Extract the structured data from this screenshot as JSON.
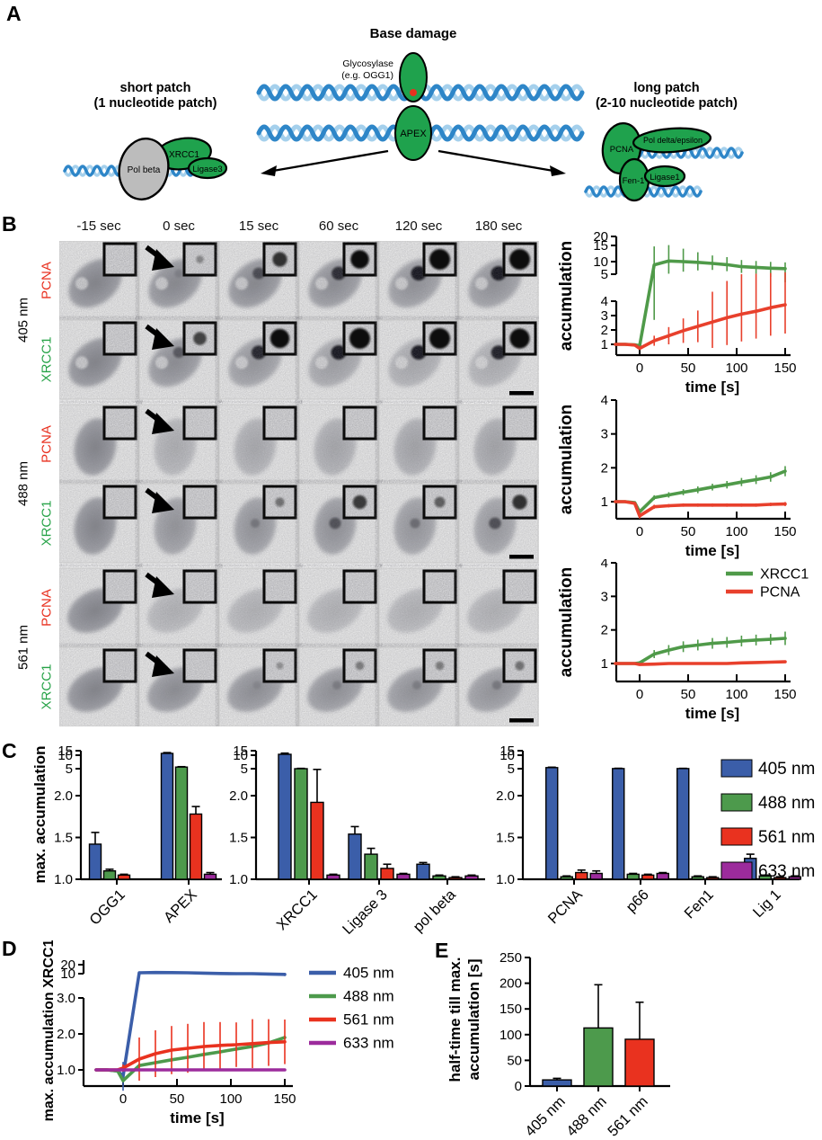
{
  "figure": {
    "panel_labels": {
      "a": "A",
      "b": "B",
      "c": "C",
      "d": "D",
      "e": "E"
    }
  },
  "colors": {
    "nm405": "#3b5ea9",
    "nm488": "#4d9a4c",
    "nm561": "#e9321f",
    "nm633": "#9c2b9c",
    "xrcc1_green": "#27a348",
    "pcna_red": "#e8301f",
    "protein_green": "#1fa24d",
    "protein_gray": "#bcbcbc",
    "dna_dark": "#2e86c8",
    "dna_light": "#a5d0ec",
    "curve_green": "#4f9a49",
    "curve_red": "#e8402c"
  },
  "panel_a": {
    "title": "Base damage",
    "glycosylase_label_line1": "Glycosylase",
    "glycosylase_label_line2": "(e.g. OGG1)",
    "glycosylase_enzyme": "Glycosylase",
    "apex": "APEX",
    "left_heading_line1": "short patch",
    "left_heading_line2": "(1 nucleotide patch)",
    "right_heading_line1": "long patch",
    "right_heading_line2": "(2-10 nucleotide patch)",
    "left_proteins": [
      "Pol beta",
      "XRCC1",
      "Ligase3"
    ],
    "right_proteins": [
      "PCNA",
      "Pol delta/epsilon",
      "Fen-1",
      "Ligase1"
    ]
  },
  "panel_b": {
    "time_headers": [
      "-15 sec",
      "0 sec",
      "15 sec",
      "60 sec",
      "120 sec",
      "180 sec"
    ],
    "groups": [
      {
        "wavelength": "405 nm",
        "rows": [
          {
            "protein": "PCNA",
            "color": "#e8301f",
            "spots": [
              0,
              0.15,
              0.6,
              0.85,
              1,
              1
            ],
            "fade": [
              1,
              0.95,
              0.95,
              0.9,
              0.85,
              0.85
            ]
          },
          {
            "protein": "XRCC1",
            "color": "#27a348",
            "spots": [
              0,
              0.5,
              0.9,
              1,
              1,
              0.95
            ],
            "fade": [
              1,
              0.9,
              0.8,
              0.7,
              0.6,
              0.55
            ]
          }
        ]
      },
      {
        "wavelength": "488 nm",
        "rows": [
          {
            "protein": "PCNA",
            "color": "#e8301f",
            "spots": [
              0,
              0,
              0,
              0,
              0,
              0
            ],
            "fade": [
              1,
              0.55,
              0.6,
              0.62,
              0.65,
              0.65
            ]
          },
          {
            "protein": "XRCC1",
            "color": "#27a348",
            "spots": [
              0,
              0,
              0.25,
              0.55,
              0.35,
              0.6
            ],
            "fade": [
              1,
              0.82,
              0.84,
              0.86,
              0.8,
              0.76
            ]
          }
        ]
      },
      {
        "wavelength": "561 nm",
        "rows": [
          {
            "protein": "PCNA",
            "color": "#e8301f",
            "spots": [
              0,
              0,
              0,
              0,
              0,
              0
            ],
            "fade": [
              1,
              0.5,
              0.5,
              0.5,
              0.5,
              0.5
            ]
          },
          {
            "protein": "XRCC1",
            "color": "#27a348",
            "spots": [
              0,
              0,
              0.1,
              0.2,
              0.2,
              0.25
            ],
            "fade": [
              1,
              0.9,
              0.88,
              0.86,
              0.84,
              0.82
            ]
          }
        ]
      }
    ]
  },
  "wavelength_legend": [
    {
      "label": "405 nm",
      "color": "#3b5ea9"
    },
    {
      "label": "488 nm",
      "color": "#4d9a4c"
    },
    {
      "label": "561 nm",
      "color": "#e9321f"
    },
    {
      "label": "633 nm",
      "color": "#9c2b9c"
    }
  ],
  "chart_data": [
    {
      "id": "b405",
      "type": "line",
      "panel": "B",
      "condition": "405 nm",
      "xlabel": "time [s]",
      "ylabel": "accumulation",
      "x_ticks": [
        0,
        50,
        100,
        150
      ],
      "y_ticks": [
        1,
        2,
        3,
        4
      ],
      "y_ticks_break": [
        5,
        10,
        15,
        20
      ],
      "x": [
        -25,
        -15,
        -5,
        0,
        15,
        30,
        45,
        60,
        75,
        90,
        105,
        120,
        135,
        150
      ],
      "series": [
        {
          "name": "XRCC1",
          "color": "#4f9a49",
          "values": [
            1,
            1,
            0.97,
            0.9,
            8.7,
            10.2,
            10,
            9.7,
            9.3,
            8.8,
            8,
            7.7,
            7.4,
            7.2
          ],
          "errors": [
            0,
            0,
            0,
            0.15,
            6,
            5,
            4,
            3.2,
            2.6,
            2.6,
            2.5,
            2.5,
            2.5,
            2.5
          ]
        },
        {
          "name": "PCNA",
          "color": "#e8402c",
          "values": [
            1,
            1,
            0.95,
            0.72,
            1.25,
            1.6,
            1.95,
            2.25,
            2.55,
            2.85,
            3.1,
            3.3,
            3.55,
            3.75
          ],
          "errors": [
            0,
            0,
            0,
            0.1,
            0.35,
            0.6,
            0.85,
            1.1,
            1.8,
            1.9,
            1.9,
            1.9,
            1.95,
            2
          ]
        }
      ]
    },
    {
      "id": "b488",
      "type": "line",
      "panel": "B",
      "condition": "488 nm",
      "xlabel": "time [s]",
      "ylabel": "accumulation",
      "x_ticks": [
        0,
        50,
        100,
        150
      ],
      "y_ticks": [
        1,
        2,
        3,
        4
      ],
      "x": [
        -25,
        -15,
        -5,
        0,
        15,
        30,
        45,
        60,
        75,
        90,
        105,
        120,
        135,
        150
      ],
      "series": [
        {
          "name": "XRCC1",
          "color": "#4f9a49",
          "values": [
            1,
            1,
            0.97,
            0.7,
            1.12,
            1.2,
            1.28,
            1.35,
            1.43,
            1.5,
            1.58,
            1.65,
            1.73,
            1.9
          ],
          "errors": [
            0,
            0,
            0,
            0.08,
            0.07,
            0.08,
            0.09,
            0.1,
            0.1,
            0.11,
            0.12,
            0.13,
            0.14,
            0.15
          ]
        },
        {
          "name": "PCNA",
          "color": "#e8402c",
          "values": [
            1,
            1,
            0.95,
            0.58,
            0.85,
            0.88,
            0.9,
            0.9,
            0.9,
            0.9,
            0.9,
            0.9,
            0.92,
            0.93
          ],
          "errors": [
            0,
            0,
            0,
            0.08,
            0.06,
            0.05,
            0.05,
            0.05,
            0.05,
            0.05,
            0.05,
            0.05,
            0.05,
            0.06
          ]
        }
      ]
    },
    {
      "id": "b561",
      "type": "line",
      "panel": "B",
      "condition": "561 nm",
      "xlabel": "time [s]",
      "ylabel": "accumulation",
      "legend": true,
      "x_ticks": [
        0,
        50,
        100,
        150
      ],
      "y_ticks": [
        1,
        2,
        3,
        4
      ],
      "x": [
        -25,
        -15,
        -5,
        0,
        15,
        30,
        45,
        60,
        75,
        90,
        105,
        120,
        135,
        150
      ],
      "series": [
        {
          "name": "XRCC1",
          "color": "#4f9a49",
          "values": [
            1,
            1,
            1,
            1.02,
            1.28,
            1.4,
            1.5,
            1.55,
            1.6,
            1.63,
            1.67,
            1.7,
            1.72,
            1.75
          ],
          "errors": [
            0,
            0,
            0,
            0.05,
            0.12,
            0.15,
            0.16,
            0.16,
            0.16,
            0.16,
            0.16,
            0.16,
            0.16,
            0.2
          ]
        },
        {
          "name": "PCNA",
          "color": "#e8402c",
          "values": [
            1,
            1,
            1,
            0.97,
            0.98,
            1,
            1,
            1,
            1,
            1,
            1.02,
            1.03,
            1.04,
            1.05
          ],
          "errors": [
            0,
            0,
            0,
            0,
            0,
            0,
            0,
            0,
            0,
            0,
            0,
            0,
            0,
            0
          ]
        }
      ]
    },
    {
      "id": "c_initiation",
      "type": "bar",
      "panel": "C",
      "ylabel": "max. accumulation",
      "y_ticks": [
        "1.0",
        "1.5",
        "2.0"
      ],
      "y_ticks_break": [
        "5",
        "10",
        "15"
      ],
      "categories": [
        "OGG1",
        "APEX"
      ],
      "series": [
        {
          "name": "405 nm",
          "color": "#3b5ea9",
          "values": [
            1.42,
            12
          ],
          "errors": [
            0.14,
            0.9
          ]
        },
        {
          "name": "488 nm",
          "color": "#4d9a4c",
          "values": [
            1.1,
            5.6
          ],
          "errors": [
            0.02,
            0.15
          ]
        },
        {
          "name": "561 nm",
          "color": "#e9321f",
          "values": [
            1.05,
            1.78
          ],
          "errors": [
            0.01,
            0.09
          ]
        },
        {
          "name": "633 nm",
          "color": "#9c2b9c",
          "values": [
            null,
            1.06
          ],
          "errors": [
            null,
            0.02
          ]
        }
      ]
    },
    {
      "id": "c_shortpatch",
      "type": "bar",
      "panel": "C",
      "y_ticks": [
        "1.0",
        "1.5",
        "2.0"
      ],
      "y_ticks_break": [
        "5",
        "10",
        "15"
      ],
      "categories": [
        "XRCC1",
        "Ligase 3",
        "pol beta"
      ],
      "series": [
        {
          "name": "405 nm",
          "color": "#3b5ea9",
          "values": [
            11,
            1.54,
            1.18
          ],
          "errors": [
            1.3,
            0.09,
            0.02
          ]
        },
        {
          "name": "488 nm",
          "color": "#4d9a4c",
          "values": [
            5,
            1.3,
            1.04
          ],
          "errors": [
            0.12,
            0.07,
            0.01
          ]
        },
        {
          "name": "561 nm",
          "color": "#e9321f",
          "values": [
            1.92,
            1.13,
            1.02
          ],
          "errors": [
            3,
            0.05,
            0.01
          ]
        },
        {
          "name": "633 nm",
          "color": "#9c2b9c",
          "values": [
            1.05,
            1.06,
            1.04
          ],
          "errors": [
            0.01,
            0.01,
            0.01
          ]
        }
      ]
    },
    {
      "id": "c_longpatch",
      "type": "bar",
      "panel": "C",
      "legend": true,
      "y_ticks": [
        "1.0",
        "1.5",
        "2.0"
      ],
      "y_ticks_break": [
        "5",
        "10",
        "15"
      ],
      "categories": [
        "PCNA",
        "p66",
        "Fen1",
        "Lig 1"
      ],
      "series": [
        {
          "name": "405 nm",
          "color": "#3b5ea9",
          "values": [
            5.4,
            5.05,
            5.05,
            1.25
          ],
          "errors": [
            0.15,
            0.1,
            0.08,
            0.05
          ]
        },
        {
          "name": "488 nm",
          "color": "#4d9a4c",
          "values": [
            1.03,
            1.06,
            1.03,
            1.04
          ],
          "errors": [
            0.01,
            0.01,
            0.01,
            0.01
          ]
        },
        {
          "name": "561 nm",
          "color": "#e9321f",
          "values": [
            1.08,
            1.05,
            1.02,
            1.02
          ],
          "errors": [
            0.03,
            0.01,
            0.01,
            0.01
          ]
        },
        {
          "name": "633 nm",
          "color": "#9c2b9c",
          "values": [
            1.07,
            1.07,
            1.02,
            1.03
          ],
          "errors": [
            0.03,
            0.01,
            0.01,
            0.01
          ]
        }
      ]
    },
    {
      "id": "d_xrcc1",
      "type": "line",
      "panel": "D",
      "legend": true,
      "xlabel": "time [s]",
      "ylabel": "max. accumulation XRCC1",
      "x_ticks": [
        0,
        50,
        100,
        150
      ],
      "y_ticks": [
        "1.0",
        "2.0",
        "3.0"
      ],
      "y_ticks_break": [
        "10",
        "20"
      ],
      "x": [
        -25,
        -15,
        -5,
        0,
        15,
        30,
        45,
        60,
        75,
        90,
        105,
        120,
        135,
        150
      ],
      "series": [
        {
          "name": "405 nm",
          "color": "#3b5ea9",
          "values": [
            1,
            1,
            0.97,
            0.82,
            11,
            11.3,
            11.2,
            11,
            10.6,
            10.2,
            10,
            10,
            9.9,
            9.8
          ],
          "errors": [
            0,
            0,
            0,
            0.4,
            1.6,
            1.3,
            1.2,
            1.1,
            0.8,
            0.5,
            0.4,
            0.4,
            0.4,
            0.5
          ]
        },
        {
          "name": "488 nm",
          "color": "#4d9a4c",
          "values": [
            1,
            1,
            0.97,
            0.7,
            1.12,
            1.2,
            1.28,
            1.35,
            1.43,
            1.5,
            1.58,
            1.65,
            1.75,
            1.9
          ],
          "errors": [
            0,
            0,
            0,
            0.05,
            0.05,
            0.05,
            0.05,
            0.05,
            0.05,
            0.05,
            0.05,
            0.05,
            0.05,
            0.05
          ]
        },
        {
          "name": "561 nm",
          "color": "#e9321f",
          "values": [
            1,
            1,
            1,
            1.05,
            1.3,
            1.45,
            1.55,
            1.6,
            1.65,
            1.68,
            1.7,
            1.73,
            1.76,
            1.78
          ],
          "errors": [
            0,
            0,
            0,
            0.1,
            0.6,
            0.65,
            0.67,
            0.68,
            0.68,
            0.65,
            0.62,
            0.68,
            0.65,
            0.62
          ]
        },
        {
          "name": "633 nm",
          "color": "#9c2b9c",
          "values": [
            1,
            1,
            1,
            1,
            1,
            1,
            1,
            1,
            1,
            1,
            1,
            1,
            1,
            1
          ],
          "errors": [
            0,
            0,
            0,
            0,
            0,
            0,
            0,
            0,
            0,
            0,
            0,
            0,
            0,
            0
          ]
        }
      ]
    },
    {
      "id": "e_halftime",
      "type": "bar",
      "panel": "E",
      "ylabel_line1": "half-time till max.",
      "ylabel_line2": "accumulation [s]",
      "y_ticks": [
        0,
        50,
        100,
        150,
        200,
        250
      ],
      "categories": [
        "405 nm",
        "488 nm",
        "561 nm"
      ],
      "series": [
        {
          "name": "half-time",
          "colors": [
            "#3b5ea9",
            "#4d9a4c",
            "#e9321f"
          ],
          "values": [
            12,
            113,
            91
          ],
          "errors": [
            3,
            84,
            72
          ]
        }
      ]
    }
  ]
}
